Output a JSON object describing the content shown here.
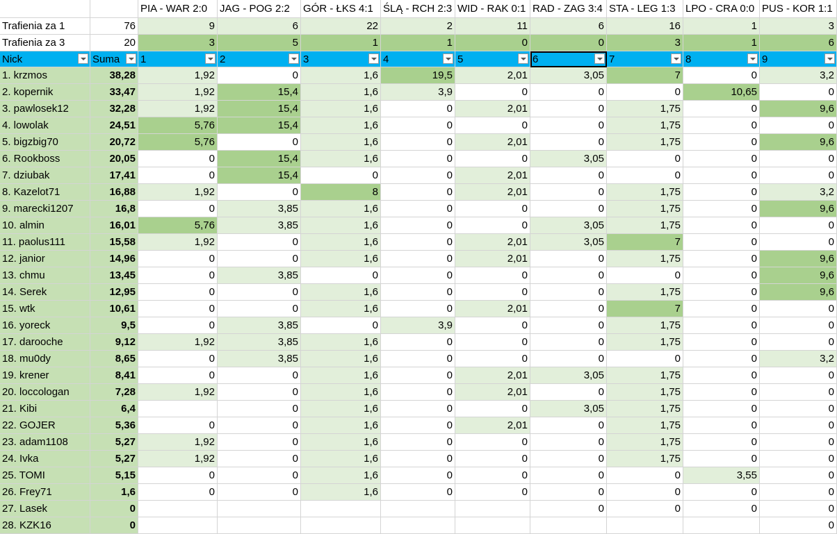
{
  "header": {
    "matches": [
      "PIA - WAR 2:0",
      "JAG - POG 2:2",
      "GÓR - ŁKS 4:1",
      "ŚLĄ - RCH 2:3",
      "WID - RAK 0:1",
      "RAD - ZAG 3:4",
      "STA - LEG 1:3",
      "LPO - CRA 0:0",
      "PUS - KOR 1:1"
    ]
  },
  "summary": [
    {
      "label": "Trafienia za 1",
      "total": "76",
      "values": [
        "9",
        "6",
        "22",
        "2",
        "11",
        "6",
        "16",
        "1",
        "3"
      ]
    },
    {
      "label": "Trafienia za 3",
      "total": "20",
      "values": [
        "3",
        "5",
        "1",
        "1",
        "0",
        "0",
        "3",
        "1",
        "6"
      ]
    }
  ],
  "columns": {
    "nick": "Nick",
    "sum": "Suma",
    "numbers": [
      "1",
      "2",
      "3",
      "4",
      "5",
      "6",
      "7",
      "8",
      "9"
    ]
  },
  "colors": {
    "nick": "#c6e0b4",
    "header": "#00b0f0",
    "light": "#e2efda",
    "dark": "#a9d08e"
  },
  "rows": [
    {
      "nick": "1. krzmos",
      "sum": "38,28",
      "values": [
        "1,92",
        "0",
        "1,6",
        "19,5",
        "2,01",
        "3,05",
        "7",
        "0",
        "3,2"
      ]
    },
    {
      "nick": "2. kopernik",
      "sum": "33,47",
      "values": [
        "1,92",
        "15,4",
        "1,6",
        "3,9",
        "0",
        "0",
        "0",
        "10,65",
        "0"
      ]
    },
    {
      "nick": "3. pawlosek12",
      "sum": "32,28",
      "values": [
        "1,92",
        "15,4",
        "1,6",
        "0",
        "2,01",
        "0",
        "1,75",
        "0",
        "9,6"
      ]
    },
    {
      "nick": "4. lowolak",
      "sum": "24,51",
      "values": [
        "5,76",
        "15,4",
        "1,6",
        "0",
        "0",
        "0",
        "1,75",
        "0",
        "0"
      ]
    },
    {
      "nick": "5. bigzbig70",
      "sum": "20,72",
      "values": [
        "5,76",
        "0",
        "1,6",
        "0",
        "2,01",
        "0",
        "1,75",
        "0",
        "9,6"
      ]
    },
    {
      "nick": "6. Rookboss",
      "sum": "20,05",
      "values": [
        "0",
        "15,4",
        "1,6",
        "0",
        "0",
        "3,05",
        "0",
        "0",
        "0"
      ]
    },
    {
      "nick": "7. dziubak",
      "sum": "17,41",
      "values": [
        "0",
        "15,4",
        "0",
        "0",
        "2,01",
        "0",
        "0",
        "0",
        "0"
      ]
    },
    {
      "nick": "8. Kazelot71",
      "sum": "16,88",
      "values": [
        "1,92",
        "0",
        "8",
        "0",
        "2,01",
        "0",
        "1,75",
        "0",
        "3,2"
      ]
    },
    {
      "nick": "9. marecki1207",
      "sum": "16,8",
      "values": [
        "0",
        "3,85",
        "1,6",
        "0",
        "0",
        "0",
        "1,75",
        "0",
        "9,6"
      ]
    },
    {
      "nick": "10. almin",
      "sum": "16,01",
      "values": [
        "5,76",
        "3,85",
        "1,6",
        "0",
        "0",
        "3,05",
        "1,75",
        "0",
        "0"
      ]
    },
    {
      "nick": "11. paolus111",
      "sum": "15,58",
      "values": [
        "1,92",
        "0",
        "1,6",
        "0",
        "2,01",
        "3,05",
        "7",
        "0",
        "0"
      ]
    },
    {
      "nick": "12. janior",
      "sum": "14,96",
      "values": [
        "0",
        "0",
        "1,6",
        "0",
        "2,01",
        "0",
        "1,75",
        "0",
        "9,6"
      ]
    },
    {
      "nick": "13. chmu",
      "sum": "13,45",
      "values": [
        "0",
        "3,85",
        "0",
        "0",
        "0",
        "0",
        "0",
        "0",
        "9,6"
      ]
    },
    {
      "nick": "14. Serek",
      "sum": "12,95",
      "values": [
        "0",
        "0",
        "1,6",
        "0",
        "0",
        "0",
        "1,75",
        "0",
        "9,6"
      ]
    },
    {
      "nick": "15. wtk",
      "sum": "10,61",
      "values": [
        "0",
        "0",
        "1,6",
        "0",
        "2,01",
        "0",
        "7",
        "0",
        "0"
      ]
    },
    {
      "nick": "16. yoreck",
      "sum": "9,5",
      "values": [
        "0",
        "3,85",
        "0",
        "3,9",
        "0",
        "0",
        "1,75",
        "0",
        "0"
      ]
    },
    {
      "nick": "17. darooche",
      "sum": "9,12",
      "values": [
        "1,92",
        "3,85",
        "1,6",
        "0",
        "0",
        "0",
        "1,75",
        "0",
        "0"
      ]
    },
    {
      "nick": "18. mu0dy",
      "sum": "8,65",
      "values": [
        "0",
        "3,85",
        "1,6",
        "0",
        "0",
        "0",
        "0",
        "0",
        "3,2"
      ]
    },
    {
      "nick": "19. krener",
      "sum": "8,41",
      "values": [
        "0",
        "0",
        "1,6",
        "0",
        "2,01",
        "3,05",
        "1,75",
        "0",
        "0"
      ]
    },
    {
      "nick": "20. loccologan",
      "sum": "7,28",
      "values": [
        "1,92",
        "0",
        "1,6",
        "0",
        "2,01",
        "0",
        "1,75",
        "0",
        "0"
      ]
    },
    {
      "nick": "21. Kibi",
      "sum": "6,4",
      "values": [
        null,
        "0",
        "1,6",
        "0",
        "0",
        "3,05",
        "1,75",
        "0",
        "0"
      ]
    },
    {
      "nick": "22. GOJER",
      "sum": "5,36",
      "values": [
        "0",
        "0",
        "1,6",
        "0",
        "2,01",
        "0",
        "1,75",
        "0",
        "0"
      ]
    },
    {
      "nick": "23. adam1108",
      "sum": "5,27",
      "values": [
        "1,92",
        "0",
        "1,6",
        "0",
        "0",
        "0",
        "1,75",
        "0",
        "0"
      ]
    },
    {
      "nick": "24. Ivka",
      "sum": "5,27",
      "values": [
        "1,92",
        "0",
        "1,6",
        "0",
        "0",
        "0",
        "1,75",
        "0",
        "0"
      ]
    },
    {
      "nick": "25. TOMI",
      "sum": "5,15",
      "values": [
        "0",
        "0",
        "1,6",
        "0",
        "0",
        "0",
        "0",
        "3,55",
        "0"
      ]
    },
    {
      "nick": "26. Frey71",
      "sum": "1,6",
      "values": [
        "0",
        "0",
        "1,6",
        "0",
        "0",
        "0",
        "0",
        "0",
        "0"
      ]
    },
    {
      "nick": "27. Lasek",
      "sum": "0",
      "values": [
        null,
        null,
        null,
        null,
        null,
        "0",
        "0",
        "0",
        "0"
      ]
    },
    {
      "nick": "28. KZK16",
      "sum": "0",
      "values": [
        null,
        null,
        null,
        null,
        null,
        null,
        null,
        null,
        "0"
      ]
    }
  ]
}
